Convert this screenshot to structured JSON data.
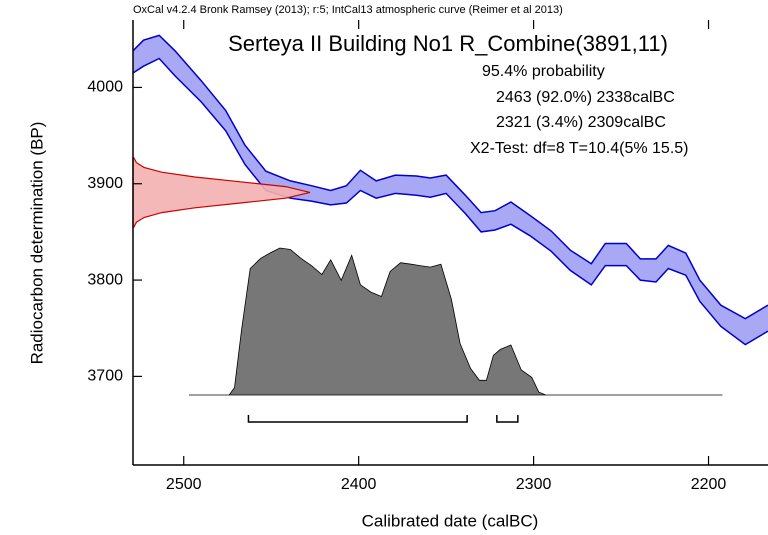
{
  "chart_data": {
    "type": "calibration",
    "header": "OxCal v4.2.4 Bronk Ramsey (2013); r:5; IntCal13 atmospheric curve (Reimer et al 2013)",
    "title": "Serteya II Building No1 R_Combine(3891,11)",
    "annotations": [
      "95.4% probability",
      "2463 (92.0%) 2338calBC",
      "2321 (3.4%) 2309calBC",
      "X2-Test: df=8 T=10.4(5% 15.5)"
    ],
    "xlabel": "Calibrated date (calBC)",
    "ylabel": "Radiocarbon determination (BP)",
    "xlim": [
      2529,
      2166
    ],
    "ylim": [
      3608,
      4070
    ],
    "xticks": [
      2500,
      2400,
      2300,
      2200
    ],
    "yticks": [
      3700,
      3800,
      3900,
      4000
    ],
    "curve": {
      "color": "#0000cc",
      "fill": "#a8a8f5",
      "x": [
        2529,
        2523,
        2514,
        2505,
        2490,
        2476,
        2465,
        2453,
        2439,
        2427,
        2416,
        2407,
        2399,
        2390,
        2379,
        2367,
        2359,
        2350,
        2339,
        2330,
        2322,
        2313,
        2302,
        2290,
        2279,
        2267,
        2259,
        2247,
        2239,
        2230,
        2223,
        2213,
        2205,
        2193,
        2179,
        2166
      ],
      "upper": [
        4038,
        4049,
        4054,
        4038,
        4007,
        3976,
        3940,
        3913,
        3903,
        3898,
        3893,
        3898,
        3914,
        3903,
        3909,
        3908,
        3906,
        3909,
        3888,
        3870,
        3872,
        3881,
        3867,
        3851,
        3831,
        3817,
        3838,
        3838,
        3822,
        3822,
        3836,
        3828,
        3800,
        3774,
        3760,
        3774
      ],
      "lower": [
        4015,
        4022,
        4030,
        4012,
        3985,
        3955,
        3920,
        3893,
        3885,
        3882,
        3878,
        3880,
        3893,
        3885,
        3890,
        3888,
        3886,
        3890,
        3869,
        3850,
        3852,
        3858,
        3846,
        3830,
        3810,
        3795,
        3815,
        3815,
        3800,
        3798,
        3812,
        3805,
        3778,
        3752,
        3733,
        3747
      ]
    },
    "radiocarbon": {
      "color": "#cc0000",
      "fill": "#f4b0b0",
      "y": [
        3855,
        3860,
        3865,
        3870,
        3875,
        3880,
        3885,
        3891,
        3897,
        3902,
        3907,
        3912,
        3917,
        3922,
        3927
      ],
      "density": [
        0.0047,
        0.019,
        0.062,
        0.162,
        0.35,
        0.607,
        0.862,
        1,
        0.862,
        0.607,
        0.35,
        0.162,
        0.062,
        0.019,
        0.0047
      ]
    },
    "posterior": {
      "color": "#777777",
      "x": [
        2497,
        2474,
        2471,
        2467,
        2462,
        2456,
        2450,
        2445,
        2439,
        2433,
        2427,
        2421,
        2416,
        2410,
        2404,
        2399,
        2393,
        2387,
        2382,
        2376,
        2370,
        2365,
        2359,
        2353,
        2347,
        2342,
        2336,
        2331,
        2327,
        2323,
        2319,
        2313,
        2307,
        2301,
        2297,
        2293,
        2192
      ],
      "density": [
        0,
        0,
        0.05,
        0.44,
        0.86,
        0.93,
        0.97,
        1,
        0.99,
        0.93,
        0.88,
        0.82,
        0.92,
        0.78,
        0.95,
        0.75,
        0.7,
        0.67,
        0.84,
        0.9,
        0.89,
        0.88,
        0.87,
        0.89,
        0.65,
        0.35,
        0.18,
        0.1,
        0.1,
        0.27,
        0.31,
        0.34,
        0.17,
        0.12,
        0.02,
        0,
        0
      ]
    },
    "ranges": [
      [
        2463,
        2338
      ],
      [
        2321,
        2309
      ]
    ]
  }
}
